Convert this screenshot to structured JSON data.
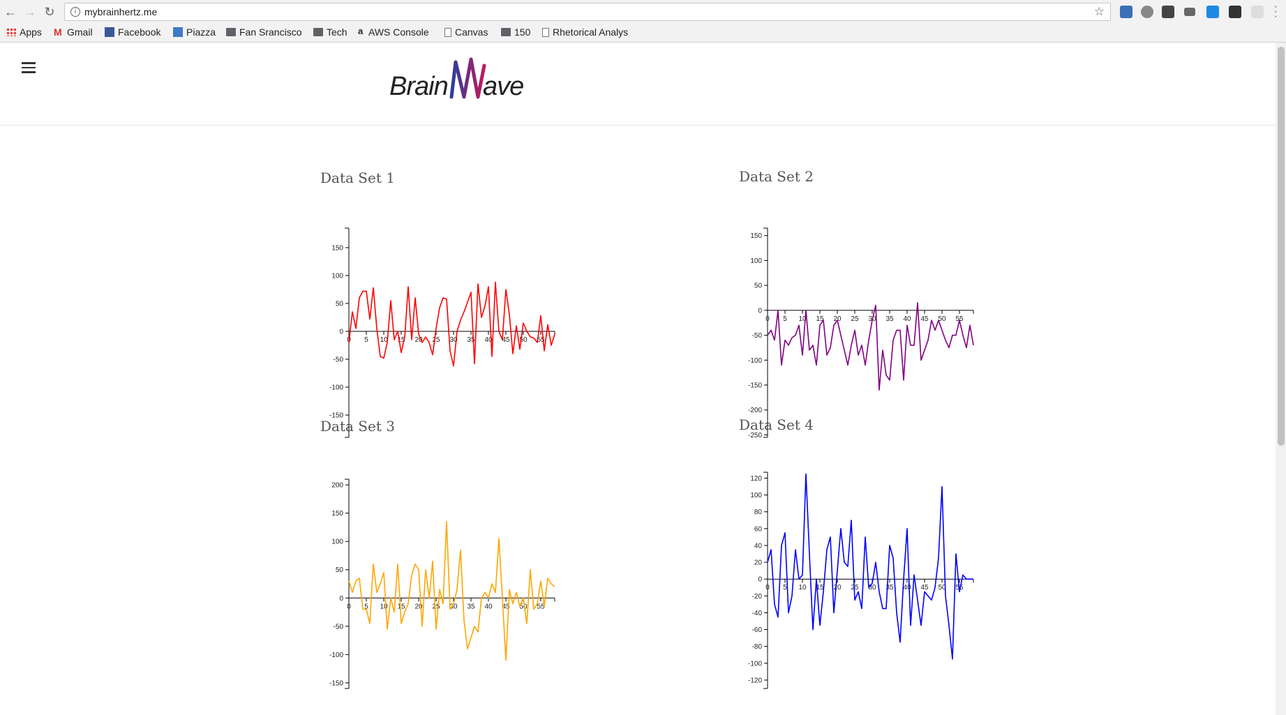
{
  "browser": {
    "url": "mybrainhertz.me",
    "bookmarks": [
      {
        "label": "Apps",
        "icon": "apps-grid-icon"
      },
      {
        "label": "Gmail",
        "icon": "gmail-icon"
      },
      {
        "label": "Facebook",
        "icon": "facebook-icon"
      },
      {
        "label": "Piazza",
        "icon": "piazza-icon"
      },
      {
        "label": "Fan Srancisco",
        "icon": "folder-icon"
      },
      {
        "label": "Tech",
        "icon": "folder-icon"
      },
      {
        "label": "AWS Console",
        "icon": "amazon-icon"
      },
      {
        "label": "Canvas",
        "icon": "page-icon"
      },
      {
        "label": "150",
        "icon": "folder-icon"
      },
      {
        "label": "Rhetorical Analys",
        "icon": "page-icon"
      }
    ]
  },
  "site": {
    "logo_text_left": "Brain",
    "logo_text_right": "ave"
  },
  "chart_data": [
    {
      "type": "line",
      "title": "Data Set 1",
      "color": "#ff0000",
      "x_ticks": [
        0,
        5,
        10,
        15,
        20,
        25,
        30,
        35,
        40,
        45,
        50,
        55
      ],
      "y_ticks": [
        150,
        100,
        50,
        0,
        -50,
        -100,
        -150
      ],
      "ylim": [
        -190,
        185
      ],
      "xlim": [
        0,
        59
      ],
      "x": [
        0,
        1,
        2,
        3,
        4,
        5,
        6,
        7,
        8,
        9,
        10,
        11,
        12,
        13,
        14,
        15,
        16,
        17,
        18,
        19,
        20,
        21,
        22,
        23,
        24,
        25,
        26,
        27,
        28,
        29,
        30,
        31,
        32,
        33,
        34,
        35,
        36,
        37,
        38,
        39,
        40,
        41,
        42,
        43,
        44,
        45,
        46,
        47,
        48,
        49,
        50,
        51,
        52,
        53,
        54,
        55,
        56,
        57,
        58,
        59
      ],
      "values": [
        -20,
        35,
        5,
        60,
        72,
        72,
        22,
        78,
        5,
        -45,
        -48,
        -20,
        55,
        -15,
        0,
        -38,
        -10,
        80,
        -15,
        60,
        -5,
        -20,
        -10,
        -20,
        -42,
        5,
        42,
        60,
        58,
        -35,
        -62,
        0,
        20,
        35,
        52,
        70,
        -58,
        85,
        25,
        45,
        80,
        -45,
        88,
        0,
        -15,
        75,
        30,
        -40,
        10,
        -32,
        15,
        0,
        -10,
        -12,
        -20,
        28,
        -35,
        12,
        -25,
        -5
      ]
    },
    {
      "type": "line",
      "title": "Data Set 2",
      "color": "#800080",
      "x_ticks": [
        0,
        5,
        10,
        15,
        20,
        25,
        30,
        35,
        40,
        45,
        50,
        55
      ],
      "y_ticks": [
        150,
        100,
        50,
        0,
        -50,
        -100,
        -150,
        -200,
        -250
      ],
      "ylim": [
        -255,
        165
      ],
      "xlim": [
        0,
        59
      ],
      "x": [
        0,
        1,
        2,
        3,
        4,
        5,
        6,
        7,
        8,
        9,
        10,
        11,
        12,
        13,
        14,
        15,
        16,
        17,
        18,
        19,
        20,
        21,
        22,
        23,
        24,
        25,
        26,
        27,
        28,
        29,
        30,
        31,
        32,
        33,
        34,
        35,
        36,
        37,
        38,
        39,
        40,
        41,
        42,
        43,
        44,
        45,
        46,
        47,
        48,
        49,
        50,
        51,
        52,
        53,
        54,
        55,
        56,
        57,
        58,
        59
      ],
      "values": [
        -50,
        -40,
        -60,
        0,
        -110,
        -60,
        -70,
        -55,
        -50,
        -30,
        -90,
        0,
        -80,
        -70,
        -110,
        -30,
        -20,
        -90,
        -75,
        -30,
        -20,
        -50,
        -80,
        -110,
        -70,
        -40,
        -90,
        -70,
        -110,
        -60,
        -20,
        10,
        -160,
        -80,
        -130,
        -140,
        -60,
        -40,
        -40,
        -140,
        -30,
        -70,
        -70,
        15,
        -100,
        -80,
        -60,
        -20,
        -40,
        -20,
        -40,
        -60,
        -75,
        -50,
        -50,
        -20,
        -50,
        -75,
        -30,
        -70
      ]
    },
    {
      "type": "line",
      "title": "Data Set 3",
      "color": "#ffa500",
      "x_ticks": [
        0,
        5,
        10,
        15,
        20,
        25,
        30,
        35,
        40,
        45,
        50,
        55
      ],
      "y_ticks": [
        200,
        150,
        100,
        50,
        0,
        -50,
        -100,
        -150
      ],
      "ylim": [
        -160,
        210
      ],
      "xlim": [
        0,
        59
      ],
      "x": [
        0,
        1,
        2,
        3,
        4,
        5,
        6,
        7,
        8,
        9,
        10,
        11,
        12,
        13,
        14,
        15,
        16,
        17,
        18,
        19,
        20,
        21,
        22,
        23,
        24,
        25,
        26,
        27,
        28,
        29,
        30,
        31,
        32,
        33,
        34,
        35,
        36,
        37,
        38,
        39,
        40,
        41,
        42,
        43,
        44,
        45,
        46,
        47,
        48,
        49,
        50,
        51,
        52,
        53,
        54,
        55,
        56,
        57,
        58,
        59
      ],
      "values": [
        30,
        10,
        30,
        35,
        -20,
        -20,
        -45,
        60,
        10,
        25,
        45,
        -55,
        0,
        -25,
        60,
        -45,
        -25,
        -10,
        40,
        60,
        50,
        -50,
        50,
        0,
        65,
        -55,
        15,
        -10,
        135,
        -20,
        -10,
        15,
        85,
        -40,
        -90,
        -70,
        -50,
        -60,
        0,
        10,
        0,
        25,
        10,
        105,
        0,
        -110,
        15,
        -10,
        10,
        -15,
        0,
        -45,
        50,
        -20,
        -10,
        30,
        -15,
        35,
        25,
        20
      ]
    },
    {
      "type": "line",
      "title": "Data Set 4",
      "color": "#0000ff",
      "x_ticks": [
        0,
        5,
        10,
        15,
        20,
        25,
        30,
        35,
        40,
        45,
        50,
        55
      ],
      "y_ticks": [
        120,
        100,
        80,
        60,
        40,
        20,
        0,
        -20,
        -40,
        -60,
        -80,
        -100,
        -120
      ],
      "ylim": [
        -130,
        127
      ],
      "xlim": [
        0,
        59
      ],
      "x": [
        0,
        1,
        2,
        3,
        4,
        5,
        6,
        7,
        8,
        9,
        10,
        11,
        12,
        13,
        14,
        15,
        16,
        17,
        18,
        19,
        20,
        21,
        22,
        23,
        24,
        25,
        26,
        27,
        28,
        29,
        30,
        31,
        32,
        33,
        34,
        35,
        36,
        37,
        38,
        39,
        40,
        41,
        42,
        43,
        44,
        45,
        46,
        47,
        48,
        49,
        50,
        51,
        52,
        53,
        54,
        55,
        56,
        57,
        58,
        59
      ],
      "values": [
        20,
        35,
        -30,
        -45,
        40,
        55,
        -40,
        -20,
        35,
        0,
        5,
        125,
        30,
        -60,
        0,
        -55,
        -15,
        35,
        50,
        -40,
        10,
        60,
        20,
        15,
        70,
        -25,
        -15,
        -35,
        50,
        -10,
        -5,
        20,
        -15,
        -35,
        -35,
        40,
        25,
        -40,
        -75,
        0,
        60,
        -55,
        5,
        -25,
        -55,
        -15,
        -20,
        -25,
        -10,
        25,
        110,
        -20,
        -55,
        -95,
        30,
        -15,
        5,
        0,
        0,
        0
      ]
    }
  ]
}
